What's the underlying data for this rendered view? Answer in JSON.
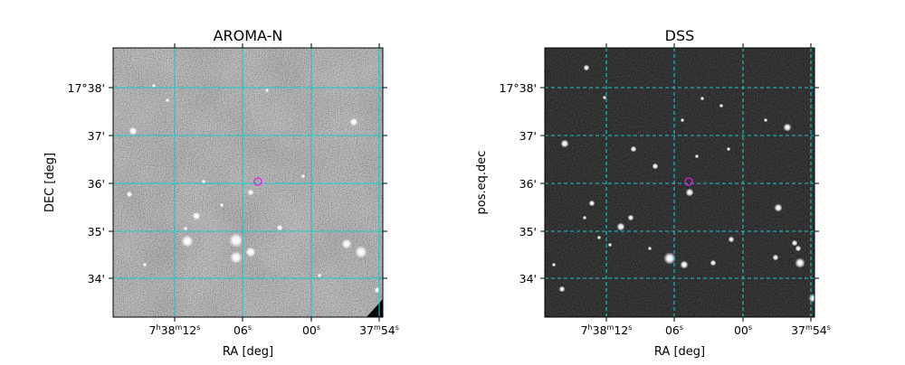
{
  "panels": [
    {
      "title": "AROMA-N",
      "xlabel": "RA [deg]",
      "ylabel": "DEC [deg]",
      "grid_style": "solid",
      "x_ticks": [
        {
          "main": "7",
          "s1": "h",
          "m2": "38",
          "s2": "m",
          "m3": "12",
          "s3": "s"
        },
        {
          "main": "06",
          "s3": "s"
        },
        {
          "main": "00",
          "s3": "s"
        },
        {
          "main": "37",
          "s2": "m",
          "m3": "54",
          "s3": "s"
        }
      ],
      "y_ticks": [
        "17°38'",
        "37'",
        "36'",
        "35'",
        "34'"
      ]
    },
    {
      "title": "DSS",
      "xlabel": "RA [deg]",
      "ylabel": "pos.eq.dec",
      "grid_style": "dashed",
      "x_ticks": [
        {
          "main": "7",
          "s1": "h",
          "m2": "38",
          "s2": "m",
          "m3": "12",
          "s3": "s"
        },
        {
          "main": "06",
          "s3": "s"
        },
        {
          "main": "00",
          "s3": "s"
        },
        {
          "main": "37",
          "s2": "m",
          "m3": "54",
          "s3": "s"
        }
      ],
      "y_ticks": [
        "17°38'",
        "37'",
        "36'",
        "35'",
        "34'"
      ]
    }
  ],
  "colors": {
    "grid": "#18c8c8",
    "target_marker": "#e020e0",
    "sky_background_aroma": "#8a8a8a",
    "sky_background_dss": "#141414"
  },
  "icons": {
    "target_marker": "target-circle-icon"
  }
}
